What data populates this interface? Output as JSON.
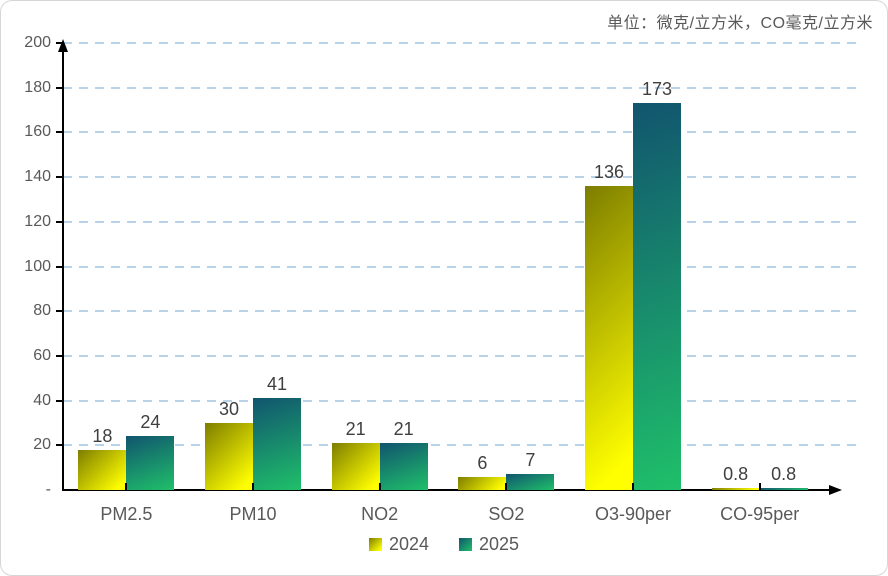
{
  "unit_title": "单位：微克/立方米，CO毫克/立方米",
  "colors": {
    "grid": "#b8d2ea",
    "axis": "#000000",
    "tick_label": "#595959",
    "data_label": "#3f3f3f",
    "series_2024_start": "#7d7d00",
    "series_2024_end": "#ffff00",
    "series_2025_start": "#11546e",
    "series_2025_end": "#1fc06a"
  },
  "chart_data": {
    "type": "bar",
    "title": "单位：微克/立方米，CO毫克/立方米",
    "categories": [
      "PM2.5",
      "PM10",
      "NO2",
      "SO2",
      "O3-90per",
      "CO-95per"
    ],
    "series": [
      {
        "name": "2024",
        "values": [
          18,
          30,
          21,
          6,
          136,
          0.8
        ]
      },
      {
        "name": "2025",
        "values": [
          24,
          41,
          21,
          7,
          173,
          0.8
        ]
      }
    ],
    "ylim": [
      0,
      200
    ],
    "ytick_step": 20,
    "ytick_labels": [
      "-",
      "20",
      "40",
      "60",
      "80",
      "100",
      "120",
      "140",
      "160",
      "180",
      "200"
    ],
    "zero_label": "-",
    "grid": "horizontal dashed",
    "legend_position": "bottom",
    "xlabel": "",
    "ylabel": ""
  }
}
